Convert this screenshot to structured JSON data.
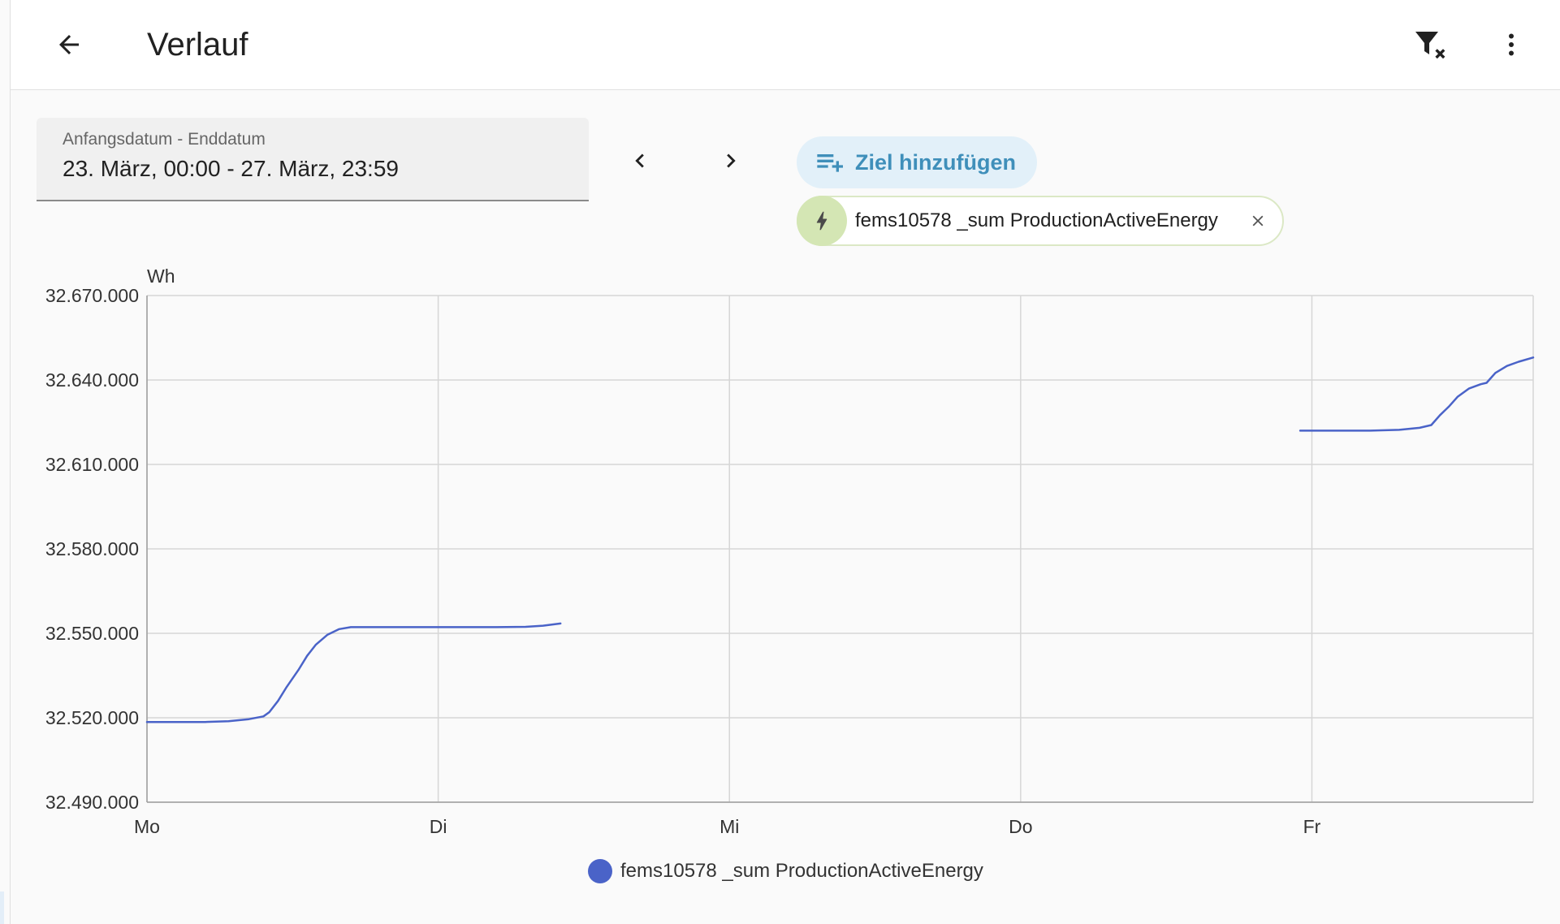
{
  "header": {
    "title": "Verlauf",
    "back_icon": "arrow-left-icon",
    "filter_icon": "filter-remove-icon",
    "menu_icon": "dots-vertical-icon"
  },
  "date_range": {
    "label": "Anfangsdatum - Enddatum",
    "value": "23. März, 00:00 - 27. März, 23:59"
  },
  "navigation": {
    "prev_icon": "chevron-left-icon",
    "next_icon": "chevron-right-icon"
  },
  "add_target": {
    "label": "Ziel hinzufügen",
    "icon": "playlist-plus-icon",
    "color": "#3f8fba"
  },
  "selected_target": {
    "label": "fems10578 _sum ProductionActiveEnergy",
    "icon": "lightning-bolt-icon",
    "remove_icon": "close-icon"
  },
  "chart_data": {
    "type": "line",
    "ylabel": "Wh",
    "ylim": [
      32490000,
      32670000
    ],
    "yticks": [
      {
        "value": 32670000,
        "label": "32.670.000"
      },
      {
        "value": 32640000,
        "label": "32.640.000"
      },
      {
        "value": 32610000,
        "label": "32.610.000"
      },
      {
        "value": 32580000,
        "label": "32.580.000"
      },
      {
        "value": 32550000,
        "label": "32.550.000"
      },
      {
        "value": 32520000,
        "label": "32.520.000"
      },
      {
        "value": 32490000,
        "label": "32.490.000"
      }
    ],
    "xlim": [
      0,
      4.76
    ],
    "xticks": [
      {
        "value": 0,
        "label": "Mo"
      },
      {
        "value": 1,
        "label": "Di"
      },
      {
        "value": 2,
        "label": "Mi"
      },
      {
        "value": 3,
        "label": "Do"
      },
      {
        "value": 4,
        "label": "Fr"
      }
    ],
    "grid": true,
    "legend_position": "bottom",
    "series": [
      {
        "name": "fems10578 _sum ProductionActiveEnergy",
        "color": "#4a63c8",
        "segments": [
          [
            [
              0.0,
              32518500
            ],
            [
              0.1,
              32518500
            ],
            [
              0.2,
              32518500
            ],
            [
              0.28,
              32518800
            ],
            [
              0.35,
              32519500
            ],
            [
              0.4,
              32520500
            ],
            [
              0.42,
              32522000
            ],
            [
              0.45,
              32526000
            ],
            [
              0.48,
              32531000
            ],
            [
              0.52,
              32537000
            ],
            [
              0.55,
              32542000
            ],
            [
              0.58,
              32546000
            ],
            [
              0.62,
              32549500
            ],
            [
              0.66,
              32551500
            ],
            [
              0.7,
              32552200
            ],
            [
              0.8,
              32552200
            ],
            [
              0.9,
              32552200
            ],
            [
              1.0,
              32552200
            ],
            [
              1.1,
              32552200
            ],
            [
              1.2,
              32552200
            ],
            [
              1.3,
              32552300
            ],
            [
              1.36,
              32552700
            ],
            [
              1.42,
              32553500
            ]
          ],
          [
            [
              3.96,
              32622000
            ],
            [
              4.1,
              32622000
            ],
            [
              4.2,
              32622000
            ],
            [
              4.3,
              32622300
            ],
            [
              4.37,
              32623000
            ],
            [
              4.41,
              32624000
            ],
            [
              4.44,
              32627500
            ],
            [
              4.47,
              32630500
            ],
            [
              4.5,
              32634000
            ],
            [
              4.54,
              32637000
            ],
            [
              4.58,
              32638500
            ],
            [
              4.6,
              32639000
            ],
            [
              4.63,
              32642500
            ],
            [
              4.67,
              32645000
            ],
            [
              4.71,
              32646500
            ],
            [
              4.76,
              32648000
            ]
          ]
        ]
      }
    ]
  }
}
